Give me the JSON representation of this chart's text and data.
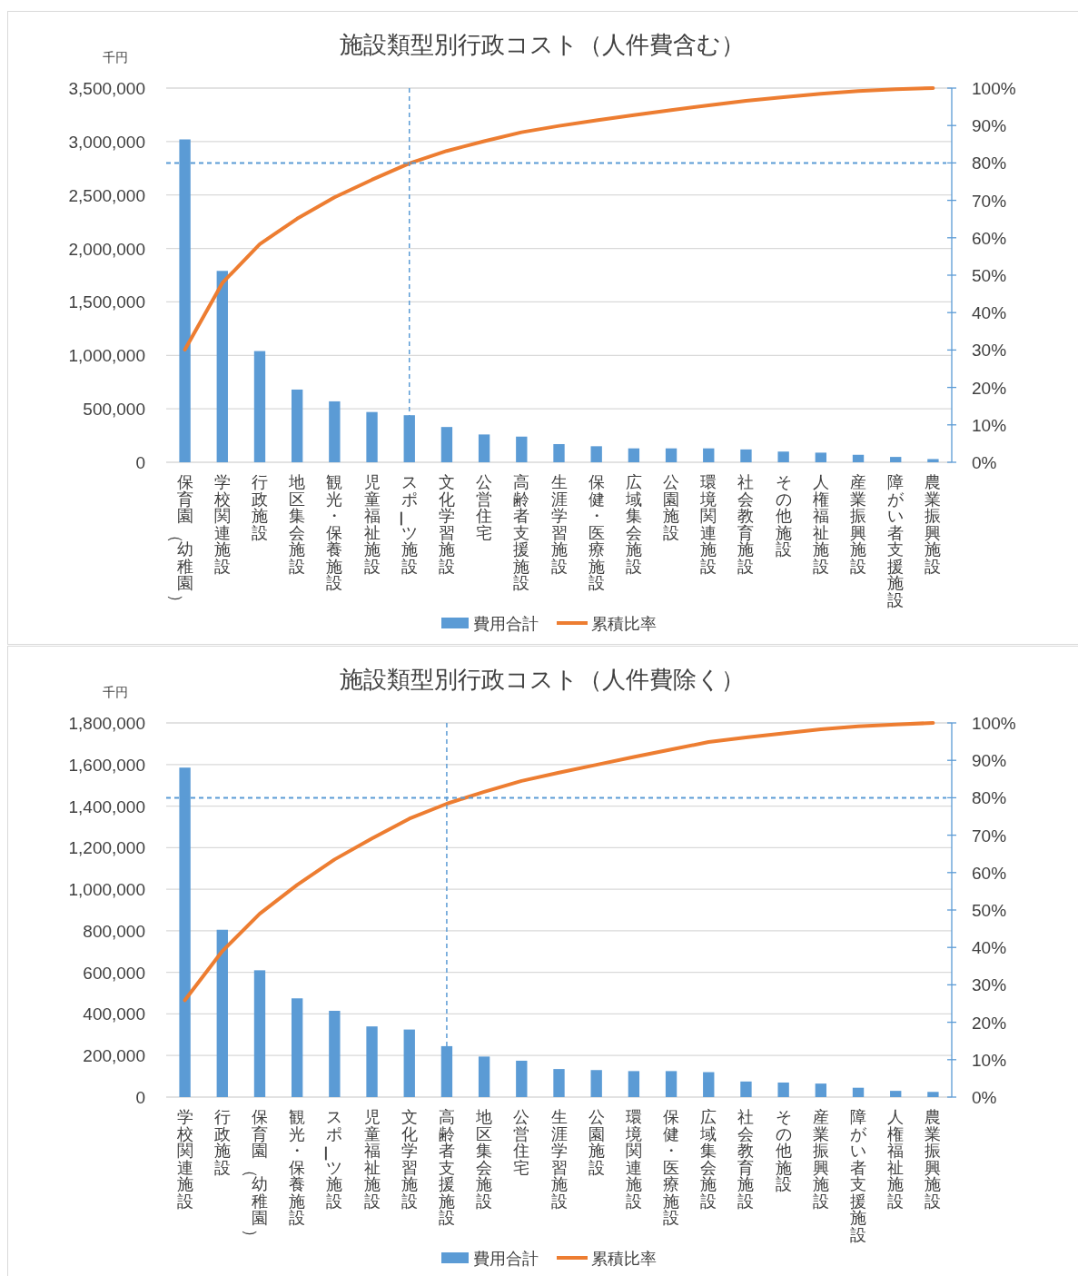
{
  "chart_data": [
    {
      "type": "bar",
      "title": "施設類型別行政コスト（人件費含む）",
      "ylabel": "千円",
      "categories": [
        "保育園（幼稚園）",
        "学校関連施設",
        "行政施設",
        "地区集会施設",
        "観光・保養施設",
        "児童福祉施設",
        "スポーツ施設",
        "文化学習施設",
        "公営住宅",
        "高齢者支援施設",
        "生涯学習施設",
        "保健・医療施設",
        "広域集会施設",
        "公園施設",
        "環境関連施設",
        "社会教育施設",
        "その他施設",
        "人権福祉施設",
        "産業振興施設",
        "障がい者支援施設",
        "農業振興施設"
      ],
      "series": [
        {
          "name": "費用合計",
          "color": "#5b9bd5",
          "values": [
            3020000,
            1790000,
            1040000,
            680000,
            570000,
            470000,
            440000,
            330000,
            260000,
            240000,
            170000,
            150000,
            130000,
            130000,
            130000,
            120000,
            100000,
            90000,
            70000,
            50000,
            30000
          ]
        },
        {
          "name": "累積比率",
          "type": "line",
          "axis": "y2",
          "color": "#ed7d31",
          "values": [
            30.1,
            47.9,
            58.3,
            65.1,
            70.8,
            75.5,
            79.9,
            83.2,
            85.8,
            88.2,
            89.9,
            91.4,
            92.8,
            94.1,
            95.4,
            96.6,
            97.6,
            98.5,
            99.2,
            99.7,
            100
          ]
        }
      ],
      "ylim": [
        0,
        3500000
      ],
      "yticks": [
        {
          "value": 0,
          "label": "0"
        },
        {
          "value": 500000,
          "label": "500,000"
        },
        {
          "value": 1000000,
          "label": "1,000,000"
        },
        {
          "value": 1500000,
          "label": "1,500,000"
        },
        {
          "value": 2000000,
          "label": "2,000,000"
        },
        {
          "value": 2500000,
          "label": "2,500,000"
        },
        {
          "value": 3000000,
          "label": "3,000,000"
        },
        {
          "value": 3500000,
          "label": "3,500,000"
        }
      ],
      "y2lim": [
        0,
        100
      ],
      "y2ticks": [
        {
          "value": 0,
          "label": "0%"
        },
        {
          "value": 10,
          "label": "10%"
        },
        {
          "value": 20,
          "label": "20%"
        },
        {
          "value": 30,
          "label": "30%"
        },
        {
          "value": 40,
          "label": "40%"
        },
        {
          "value": 50,
          "label": "50%"
        },
        {
          "value": 60,
          "label": "60%"
        },
        {
          "value": 70,
          "label": "70%"
        },
        {
          "value": 80,
          "label": "80%"
        },
        {
          "value": 90,
          "label": "90%"
        },
        {
          "value": 100,
          "label": "100%"
        }
      ],
      "ref_lines": [
        {
          "axis": "y2",
          "value": 80,
          "color": "#5b9bd5",
          "line_style": "dashed"
        },
        {
          "axis": "x",
          "value": "スポーツ施設",
          "color": "#5b9bd5",
          "line_style": "dashed"
        }
      ],
      "grid": "y",
      "legend": "bottom"
    },
    {
      "type": "bar",
      "title": "施設類型別行政コスト（人件費除く）",
      "ylabel": "千円",
      "categories": [
        "学校関連施設",
        "行政施設",
        "保育園（幼稚園）",
        "観光・保養施設",
        "スポーツ施設",
        "児童福祉施設",
        "文化学習施設",
        "高齢者支援施設",
        "地区集会施設",
        "公営住宅",
        "生涯学習施設",
        "公園施設",
        "環境関連施設",
        "保健・医療施設",
        "広域集会施設",
        "社会教育施設",
        "その他施設",
        "産業振興施設",
        "障がい者支援施設",
        "人権福祉施設",
        "農業振興施設"
      ],
      "series": [
        {
          "name": "費用合計",
          "color": "#5b9bd5",
          "values": [
            1585000,
            805000,
            610000,
            475000,
            415000,
            340000,
            325000,
            245000,
            195000,
            175000,
            135000,
            130000,
            125000,
            125000,
            120000,
            75000,
            70000,
            65000,
            45000,
            30000,
            25000
          ]
        },
        {
          "name": "累積比率",
          "type": "line",
          "axis": "y2",
          "color": "#ed7d31",
          "values": [
            25.9,
            39.0,
            49.0,
            56.7,
            63.5,
            69.1,
            74.4,
            78.4,
            81.6,
            84.5,
            86.7,
            88.8,
            90.9,
            92.9,
            94.9,
            96.1,
            97.2,
            98.3,
            99.1,
            99.6,
            100
          ]
        }
      ],
      "ylim": [
        0,
        1800000
      ],
      "yticks": [
        {
          "value": 0,
          "label": "0"
        },
        {
          "value": 200000,
          "label": "200,000"
        },
        {
          "value": 400000,
          "label": "400,000"
        },
        {
          "value": 600000,
          "label": "600,000"
        },
        {
          "value": 800000,
          "label": "800,000"
        },
        {
          "value": 1000000,
          "label": "1,000,000"
        },
        {
          "value": 1200000,
          "label": "1,200,000"
        },
        {
          "value": 1400000,
          "label": "1,400,000"
        },
        {
          "value": 1600000,
          "label": "1,600,000"
        },
        {
          "value": 1800000,
          "label": "1,800,000"
        }
      ],
      "y2lim": [
        0,
        100
      ],
      "y2ticks": [
        {
          "value": 0,
          "label": "0%"
        },
        {
          "value": 10,
          "label": "10%"
        },
        {
          "value": 20,
          "label": "20%"
        },
        {
          "value": 30,
          "label": "30%"
        },
        {
          "value": 40,
          "label": "40%"
        },
        {
          "value": 50,
          "label": "50%"
        },
        {
          "value": 60,
          "label": "60%"
        },
        {
          "value": 70,
          "label": "70%"
        },
        {
          "value": 80,
          "label": "80%"
        },
        {
          "value": 90,
          "label": "90%"
        },
        {
          "value": 100,
          "label": "100%"
        }
      ],
      "ref_lines": [
        {
          "axis": "y2",
          "value": 80,
          "color": "#5b9bd5",
          "line_style": "dashed"
        },
        {
          "axis": "x",
          "value": "高齢者支援施設",
          "color": "#5b9bd5",
          "line_style": "dashed"
        }
      ],
      "grid": "y",
      "legend": "bottom"
    }
  ]
}
